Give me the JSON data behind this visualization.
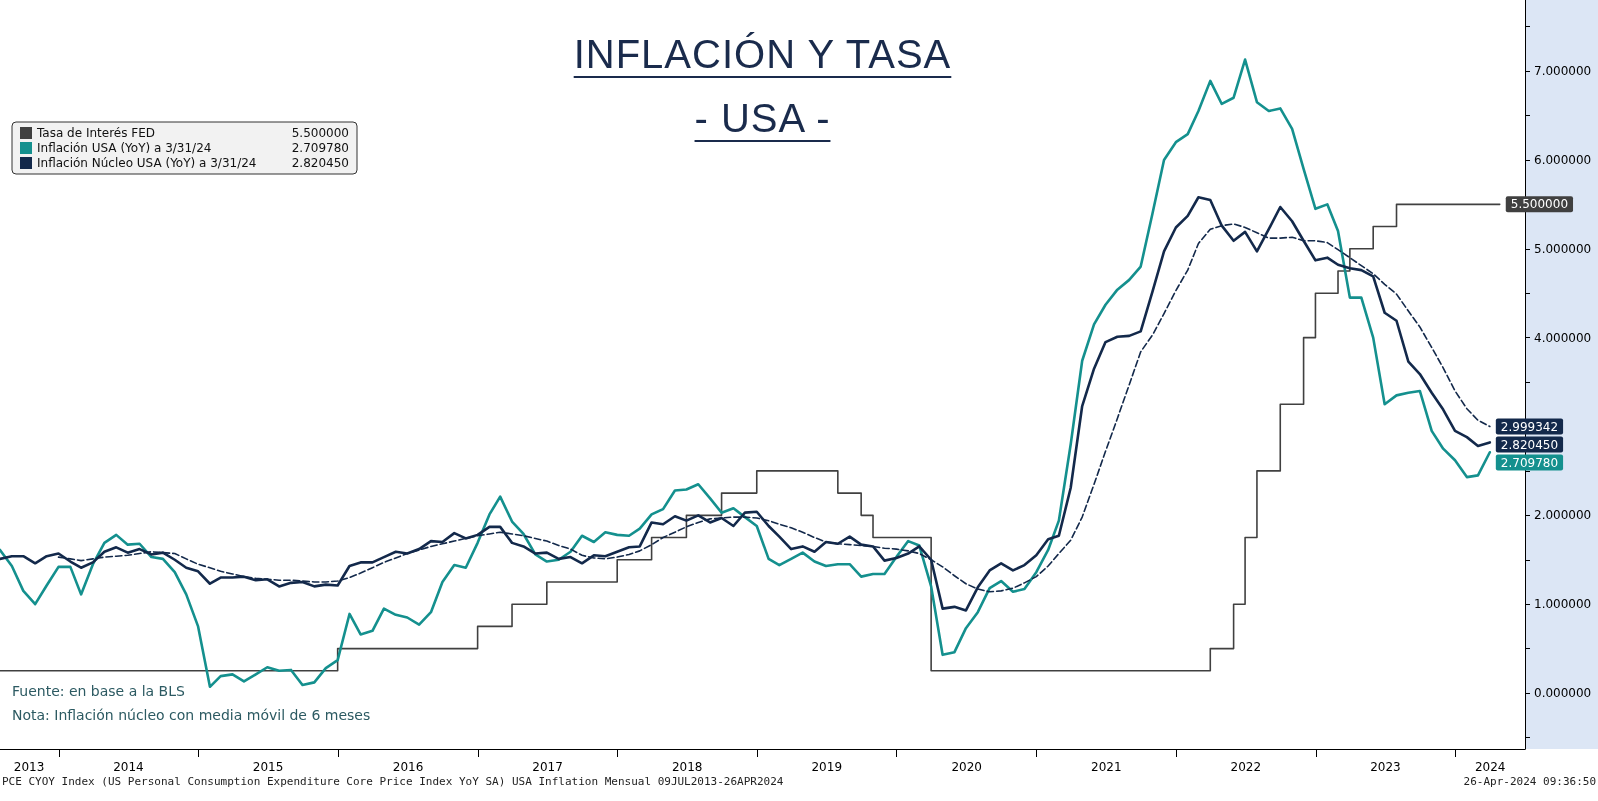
{
  "chart_data": {
    "type": "line",
    "title": "INFLACIÓN Y TASA",
    "subtitle": "- USA -",
    "annotations": [
      "Fuente: en base a la BLS",
      "Nota: Inflación núcleo con media móvil de 6 meses",
      "PCE CYOY Index (US Personal Consumption Expenditure Core Price Index YoY SA) USA Inflation  Mensual 09JUL2013-26APR2024",
      "26-Apr-2024 09:36:50"
    ],
    "x": [
      "2013-07-31",
      "2013-08-31",
      "2013-09-30",
      "2013-10-31",
      "2013-11-30",
      "2013-12-31",
      "2014-01-31",
      "2014-02-28",
      "2014-03-31",
      "2014-04-30",
      "2014-05-31",
      "2014-06-30",
      "2014-07-31",
      "2014-08-31",
      "2014-09-30",
      "2014-10-31",
      "2014-11-30",
      "2014-12-31",
      "2015-01-31",
      "2015-02-28",
      "2015-03-31",
      "2015-04-30",
      "2015-05-31",
      "2015-06-30",
      "2015-07-31",
      "2015-08-31",
      "2015-09-30",
      "2015-10-31",
      "2015-11-30",
      "2015-12-31",
      "2016-01-31",
      "2016-02-29",
      "2016-03-31",
      "2016-04-30",
      "2016-05-31",
      "2016-06-30",
      "2016-07-31",
      "2016-08-31",
      "2016-09-30",
      "2016-10-31",
      "2016-11-30",
      "2016-12-31",
      "2017-01-31",
      "2017-02-28",
      "2017-03-31",
      "2017-04-30",
      "2017-05-31",
      "2017-06-30",
      "2017-07-31",
      "2017-08-31",
      "2017-09-30",
      "2017-10-31",
      "2017-11-30",
      "2017-12-31",
      "2018-01-31",
      "2018-02-28",
      "2018-03-31",
      "2018-04-30",
      "2018-05-31",
      "2018-06-30",
      "2018-07-31",
      "2018-08-31",
      "2018-09-30",
      "2018-10-31",
      "2018-11-30",
      "2018-12-31",
      "2019-01-31",
      "2019-02-28",
      "2019-03-31",
      "2019-04-30",
      "2019-05-31",
      "2019-06-30",
      "2019-07-31",
      "2019-08-31",
      "2019-09-30",
      "2019-10-31",
      "2019-11-30",
      "2019-12-31",
      "2020-01-31",
      "2020-02-29",
      "2020-03-31",
      "2020-04-30",
      "2020-05-31",
      "2020-06-30",
      "2020-07-31",
      "2020-08-31",
      "2020-09-30",
      "2020-10-31",
      "2020-11-30",
      "2020-12-31",
      "2021-01-31",
      "2021-02-28",
      "2021-03-31",
      "2021-04-30",
      "2021-05-31",
      "2021-06-30",
      "2021-07-31",
      "2021-08-31",
      "2021-09-30",
      "2021-10-31",
      "2021-11-30",
      "2021-12-31",
      "2022-01-31",
      "2022-02-28",
      "2022-03-31",
      "2022-04-30",
      "2022-05-31",
      "2022-06-30",
      "2022-07-31",
      "2022-08-31",
      "2022-09-30",
      "2022-10-31",
      "2022-11-30",
      "2022-12-31",
      "2023-01-31",
      "2023-02-28",
      "2023-03-31",
      "2023-04-30",
      "2023-05-31",
      "2023-06-30",
      "2023-07-31",
      "2023-08-31",
      "2023-09-30",
      "2023-10-31",
      "2023-11-30",
      "2023-12-31",
      "2024-01-31",
      "2024-02-29",
      "2024-03-31"
    ],
    "xlim": [
      "2013-07-31",
      "2024-07-01"
    ],
    "xticks": [
      {
        "value": "2013-10-15",
        "label": "2013"
      },
      {
        "value": "2014-01-01",
        "label": null
      },
      {
        "value": "2014-07-02",
        "label": "2014"
      },
      {
        "value": "2015-01-01",
        "label": null
      },
      {
        "value": "2015-07-02",
        "label": "2015"
      },
      {
        "value": "2016-01-01",
        "label": null
      },
      {
        "value": "2016-07-02",
        "label": "2016"
      },
      {
        "value": "2017-01-01",
        "label": null
      },
      {
        "value": "2017-07-02",
        "label": "2017"
      },
      {
        "value": "2018-01-01",
        "label": null
      },
      {
        "value": "2018-07-02",
        "label": "2018"
      },
      {
        "value": "2019-01-01",
        "label": null
      },
      {
        "value": "2019-07-02",
        "label": "2019"
      },
      {
        "value": "2020-01-01",
        "label": null
      },
      {
        "value": "2020-07-02",
        "label": "2020"
      },
      {
        "value": "2021-01-01",
        "label": null
      },
      {
        "value": "2021-07-02",
        "label": "2021"
      },
      {
        "value": "2022-01-01",
        "label": null
      },
      {
        "value": "2022-07-02",
        "label": "2022"
      },
      {
        "value": "2023-01-01",
        "label": null
      },
      {
        "value": "2023-07-02",
        "label": "2023"
      },
      {
        "value": "2024-01-01",
        "label": null
      },
      {
        "value": "2024-04-01",
        "label": "2024"
      }
    ],
    "ylim": [
      -0.63,
      7.8
    ],
    "yticks": [
      {
        "value": -0.5,
        "label": null
      },
      {
        "value": 0,
        "label": "0.000000"
      },
      {
        "value": 0.5,
        "label": null
      },
      {
        "value": 1,
        "label": "1.000000"
      },
      {
        "value": 1.5,
        "label": null
      },
      {
        "value": 2,
        "label": "2.000000"
      },
      {
        "value": 2.5,
        "label": null
      },
      {
        "value": 3,
        "label": null
      },
      {
        "value": 3.5,
        "label": null
      },
      {
        "value": 4,
        "label": "4.000000"
      },
      {
        "value": 4.5,
        "label": null
      },
      {
        "value": 5,
        "label": "5.000000"
      },
      {
        "value": 5.5,
        "label": null
      },
      {
        "value": 6,
        "label": "6.000000"
      },
      {
        "value": 6.5,
        "label": null
      },
      {
        "value": 7,
        "label": "7.000000"
      },
      {
        "value": 7.5,
        "label": null
      }
    ],
    "legend": "top left",
    "marker": "none",
    "series": [
      {
        "name": "Tasa de Interés FED",
        "type": "step",
        "color": "#404040",
        "x": [
          "2013-07-31",
          "2015-12-31",
          "2016-12-31",
          "2017-03-31",
          "2017-06-30",
          "2017-12-31",
          "2018-03-31",
          "2018-06-30",
          "2018-09-30",
          "2018-12-31",
          "2019-07-31",
          "2019-09-30",
          "2019-10-31",
          "2020-03-31",
          "2022-03-31",
          "2022-05-31",
          "2022-06-30",
          "2022-07-31",
          "2022-09-30",
          "2022-11-30",
          "2022-12-31",
          "2023-02-28",
          "2023-03-31",
          "2023-05-31",
          "2023-07-31",
          "2024-04-26"
        ],
        "values": [
          0.25,
          0.5,
          0.75,
          1.0,
          1.25,
          1.5,
          1.75,
          2.0,
          2.25,
          2.5,
          2.25,
          2.0,
          1.75,
          0.25,
          0.5,
          1.0,
          1.75,
          2.5,
          3.25,
          4.0,
          4.5,
          4.75,
          5.0,
          5.25,
          5.5,
          5.5
        ],
        "value_labels": [
          null,
          null,
          null,
          null,
          null,
          null,
          null,
          null,
          null,
          null,
          null,
          null,
          null,
          null,
          null,
          null,
          null,
          null,
          null,
          null,
          null,
          null,
          null,
          null,
          null,
          "5.500000"
        ]
      },
      {
        "name": "Inflación USA (YoY) a 3/31/24",
        "color": "#14908e",
        "values": [
          1.61,
          1.43,
          1.15,
          1.0,
          1.21,
          1.42,
          1.42,
          1.11,
          1.45,
          1.69,
          1.78,
          1.67,
          1.68,
          1.53,
          1.51,
          1.36,
          1.11,
          0.75,
          0.07,
          0.19,
          0.21,
          0.13,
          0.21,
          0.29,
          0.25,
          0.26,
          0.09,
          0.12,
          0.28,
          0.37,
          0.89,
          0.66,
          0.7,
          0.95,
          0.88,
          0.85,
          0.77,
          0.91,
          1.25,
          1.44,
          1.41,
          1.69,
          2.01,
          2.21,
          1.93,
          1.79,
          1.56,
          1.48,
          1.5,
          1.59,
          1.77,
          1.7,
          1.81,
          1.78,
          1.77,
          1.85,
          2.01,
          2.07,
          2.28,
          2.29,
          2.35,
          2.19,
          2.03,
          2.08,
          1.98,
          1.88,
          1.51,
          1.44,
          1.51,
          1.58,
          1.48,
          1.43,
          1.45,
          1.45,
          1.31,
          1.34,
          1.34,
          1.53,
          1.71,
          1.66,
          1.2,
          0.43,
          0.46,
          0.73,
          0.91,
          1.18,
          1.26,
          1.14,
          1.17,
          1.36,
          1.61,
          1.94,
          2.8,
          3.74,
          4.15,
          4.37,
          4.54,
          4.65,
          4.8,
          5.4,
          6.0,
          6.2,
          6.29,
          6.55,
          6.89,
          6.63,
          6.7,
          7.13,
          6.65,
          6.55,
          6.58,
          6.35,
          5.9,
          5.45,
          5.5,
          5.2,
          4.45,
          4.45,
          4.0,
          3.25,
          3.35,
          3.38,
          3.4,
          2.95,
          2.75,
          2.62,
          2.43,
          2.45,
          2.70978
        ],
        "value_labels": [
          null,
          null,
          null,
          null,
          null,
          null,
          null,
          null,
          null,
          null,
          null,
          null,
          null,
          null,
          null,
          null,
          null,
          null,
          null,
          null,
          null,
          null,
          null,
          null,
          null,
          null,
          null,
          null,
          null,
          null,
          null,
          null,
          null,
          null,
          null,
          null,
          null,
          null,
          null,
          null,
          null,
          null,
          null,
          null,
          null,
          null,
          null,
          null,
          null,
          null,
          null,
          null,
          null,
          null,
          null,
          null,
          null,
          null,
          null,
          null,
          null,
          null,
          null,
          null,
          null,
          null,
          null,
          null,
          null,
          null,
          null,
          null,
          null,
          null,
          null,
          null,
          null,
          null,
          null,
          null,
          null,
          null,
          null,
          null,
          null,
          null,
          null,
          null,
          null,
          null,
          null,
          null,
          null,
          null,
          null,
          null,
          null,
          null,
          null,
          null,
          null,
          null,
          null,
          null,
          null,
          null,
          null,
          null,
          null,
          null,
          null,
          null,
          null,
          null,
          null,
          null,
          null,
          null,
          null,
          null,
          null,
          null,
          null,
          null,
          null,
          null,
          null,
          null,
          "2.709780"
        ]
      },
      {
        "name": "Inflación Núcleo USA (YoY) a 3/31/24",
        "color": "#13294b",
        "values": [
          1.51,
          1.54,
          1.54,
          1.46,
          1.54,
          1.57,
          1.48,
          1.41,
          1.47,
          1.59,
          1.64,
          1.58,
          1.62,
          1.56,
          1.58,
          1.5,
          1.41,
          1.37,
          1.23,
          1.3,
          1.3,
          1.31,
          1.27,
          1.28,
          1.2,
          1.24,
          1.25,
          1.2,
          1.22,
          1.21,
          1.43,
          1.47,
          1.47,
          1.53,
          1.59,
          1.57,
          1.62,
          1.71,
          1.7,
          1.8,
          1.74,
          1.78,
          1.87,
          1.87,
          1.69,
          1.65,
          1.57,
          1.58,
          1.51,
          1.53,
          1.46,
          1.55,
          1.54,
          1.59,
          1.64,
          1.65,
          1.92,
          1.9,
          1.99,
          1.94,
          2.0,
          1.92,
          1.97,
          1.88,
          2.03,
          2.04,
          1.88,
          1.76,
          1.62,
          1.65,
          1.59,
          1.7,
          1.68,
          1.76,
          1.67,
          1.65,
          1.49,
          1.52,
          1.57,
          1.65,
          1.5,
          0.95,
          0.97,
          0.93,
          1.19,
          1.38,
          1.46,
          1.38,
          1.44,
          1.55,
          1.73,
          1.77,
          2.31,
          3.23,
          3.65,
          3.95,
          4.01,
          4.02,
          4.07,
          4.52,
          4.97,
          5.24,
          5.37,
          5.58,
          5.55,
          5.26,
          5.09,
          5.19,
          4.97,
          5.22,
          5.47,
          5.31,
          5.09,
          4.87,
          4.9,
          4.82,
          4.78,
          4.76,
          4.69,
          4.28,
          4.19,
          3.73,
          3.59,
          3.38,
          3.19,
          2.95,
          2.88,
          2.78,
          2.82045
        ],
        "value_labels": [
          null,
          null,
          null,
          null,
          null,
          null,
          null,
          null,
          null,
          null,
          null,
          null,
          null,
          null,
          null,
          null,
          null,
          null,
          null,
          null,
          null,
          null,
          null,
          null,
          null,
          null,
          null,
          null,
          null,
          null,
          null,
          null,
          null,
          null,
          null,
          null,
          null,
          null,
          null,
          null,
          null,
          null,
          null,
          null,
          null,
          null,
          null,
          null,
          null,
          null,
          null,
          null,
          null,
          null,
          null,
          null,
          null,
          null,
          null,
          null,
          null,
          null,
          null,
          null,
          null,
          null,
          null,
          null,
          null,
          null,
          null,
          null,
          null,
          null,
          null,
          null,
          null,
          null,
          null,
          null,
          null,
          null,
          null,
          null,
          null,
          null,
          null,
          null,
          null,
          null,
          null,
          null,
          null,
          null,
          null,
          null,
          null,
          null,
          null,
          null,
          null,
          null,
          null,
          null,
          null,
          null,
          null,
          null,
          null,
          null,
          null,
          null,
          null,
          null,
          null,
          null,
          null,
          null,
          null,
          null,
          null,
          null,
          null,
          null,
          null,
          null,
          null,
          null,
          "2.820450"
        ]
      },
      {
        "color": "#13294b",
        "line_style": "dashed",
        "values": [
          null,
          null,
          null,
          null,
          null,
          1.53,
          1.51,
          1.49,
          1.51,
          1.53,
          1.54,
          1.55,
          1.57,
          1.59,
          1.58,
          1.57,
          1.51,
          1.45,
          1.41,
          1.37,
          1.34,
          1.31,
          1.29,
          1.28,
          1.27,
          1.27,
          1.26,
          1.25,
          1.25,
          1.26,
          1.3,
          1.35,
          1.41,
          1.47,
          1.52,
          1.57,
          1.61,
          1.65,
          1.68,
          1.71,
          1.74,
          1.77,
          1.79,
          1.81,
          1.79,
          1.77,
          1.74,
          1.71,
          1.66,
          1.62,
          1.55,
          1.52,
          1.51,
          1.53,
          1.56,
          1.6,
          1.67,
          1.75,
          1.81,
          1.87,
          1.92,
          1.96,
          1.97,
          1.98,
          1.98,
          1.97,
          1.94,
          1.9,
          1.86,
          1.81,
          1.75,
          1.7,
          1.68,
          1.67,
          1.66,
          1.65,
          1.63,
          1.62,
          1.6,
          1.57,
          1.5,
          1.42,
          1.32,
          1.23,
          1.17,
          1.14,
          1.15,
          1.18,
          1.24,
          1.31,
          1.43,
          1.57,
          1.72,
          1.98,
          2.35,
          2.72,
          3.09,
          3.47,
          3.84,
          4.03,
          4.27,
          4.53,
          4.76,
          5.06,
          5.22,
          5.26,
          5.28,
          5.24,
          5.18,
          5.12,
          5.12,
          5.13,
          5.09,
          5.09,
          5.07,
          4.99,
          4.9,
          4.81,
          4.72,
          4.6,
          4.49,
          4.3,
          4.12,
          3.89,
          3.66,
          3.4,
          3.2,
          3.07,
          2.999342
        ],
        "value_labels": [
          null,
          null,
          null,
          null,
          null,
          null,
          null,
          null,
          null,
          null,
          null,
          null,
          null,
          null,
          null,
          null,
          null,
          null,
          null,
          null,
          null,
          null,
          null,
          null,
          null,
          null,
          null,
          null,
          null,
          null,
          null,
          null,
          null,
          null,
          null,
          null,
          null,
          null,
          null,
          null,
          null,
          null,
          null,
          null,
          null,
          null,
          null,
          null,
          null,
          null,
          null,
          null,
          null,
          null,
          null,
          null,
          null,
          null,
          null,
          null,
          null,
          null,
          null,
          null,
          null,
          null,
          null,
          null,
          null,
          null,
          null,
          null,
          null,
          null,
          null,
          null,
          null,
          null,
          null,
          null,
          null,
          null,
          null,
          null,
          null,
          null,
          null,
          null,
          null,
          null,
          null,
          null,
          null,
          null,
          null,
          null,
          null,
          null,
          null,
          null,
          null,
          null,
          null,
          null,
          null,
          null,
          null,
          null,
          null,
          null,
          null,
          null,
          null,
          null,
          null,
          null,
          null,
          null,
          null,
          null,
          null,
          null,
          null,
          null,
          null,
          null,
          null,
          null,
          "2.999342"
        ]
      }
    ]
  }
}
